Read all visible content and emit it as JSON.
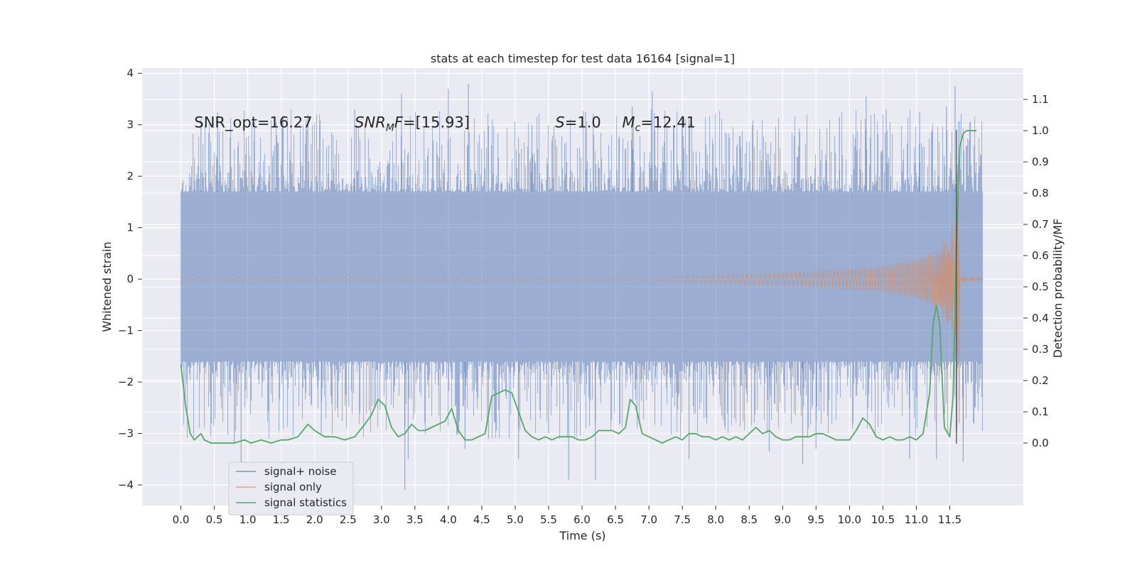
{
  "chart_data": {
    "type": "line",
    "title": "stats at each timestep for test data 16164 [signal=1]",
    "xlabel": "Time (s)",
    "ylabel": "Whitened strain",
    "ylabel_right": "Detection probability/MF",
    "xlim": [
      -0.58,
      12.6
    ],
    "ylim": [
      -4.4,
      4.1
    ],
    "ylim_right": [
      -0.2,
      1.2
    ],
    "grid": true,
    "legend_position": "lower-left",
    "colors": {
      "background": "#eaeaf2",
      "grid": "#ffffff",
      "noise": "#4c72b0",
      "signal": "#dd8452",
      "stats": "#55a868",
      "vline": "#444444"
    },
    "x_ticks": [
      "0.0",
      "0.5",
      "1.0",
      "1.5",
      "2.0",
      "2.5",
      "3.0",
      "3.5",
      "4.0",
      "4.5",
      "5.0",
      "5.5",
      "6.0",
      "6.5",
      "7.0",
      "7.5",
      "8.0",
      "8.5",
      "9.0",
      "9.5",
      "10.0",
      "10.5",
      "11.0",
      "11.5"
    ],
    "y_ticks_left": [
      "4",
      "3",
      "2",
      "1",
      "0",
      "−1",
      "−2",
      "−3",
      "−4"
    ],
    "y_ticks_right": [
      "1.1",
      "1.0",
      "0.9",
      "0.8",
      "0.7",
      "0.6",
      "0.5",
      "0.4",
      "0.3",
      "0.2",
      "0.1",
      "0.0"
    ],
    "annotations": [
      {
        "text": "SNR_opt=16.27",
        "x": 0.2,
        "y": 2.95
      },
      {
        "text": "SNR_MF=[15.93]",
        "x": 2.6,
        "y": 2.95
      },
      {
        "text": "S=1.0",
        "x": 5.6,
        "y": 2.95
      },
      {
        "text": "M_c=12.41",
        "x": 6.6,
        "y": 2.95
      }
    ],
    "series": [
      {
        "name": "signal+ noise",
        "axis": "left",
        "x_range": [
          0.0,
          12.0
        ],
        "envelope_typical": 1.7,
        "envelope_low_typical": -1.6,
        "spikes": [
          [
            0.3,
            3.1
          ],
          [
            0.55,
            3.25
          ],
          [
            1.1,
            3.05
          ],
          [
            1.9,
            3.2
          ],
          [
            2.6,
            3.3
          ],
          [
            3.3,
            3.6
          ],
          [
            4.0,
            3.7
          ],
          [
            4.3,
            3.8
          ],
          [
            5.25,
            3.0
          ],
          [
            6.05,
            3.25
          ],
          [
            6.75,
            3.35
          ],
          [
            7.05,
            3.65
          ],
          [
            7.6,
            3.1
          ],
          [
            8.55,
            3.0
          ],
          [
            9.85,
            3.15
          ],
          [
            10.25,
            3.55
          ],
          [
            10.55,
            3.3
          ],
          [
            11.05,
            3.25
          ],
          [
            11.45,
            3.35
          ],
          [
            11.58,
            3.75
          ],
          [
            0.8,
            -3.2
          ],
          [
            0.9,
            -3.6
          ],
          [
            2.1,
            -3.0
          ],
          [
            3.35,
            -4.1
          ],
          [
            3.4,
            -3.5
          ],
          [
            4.25,
            -3.3
          ],
          [
            4.6,
            -3.1
          ],
          [
            5.05,
            -3.5
          ],
          [
            5.5,
            -3.0
          ],
          [
            5.8,
            -3.9
          ],
          [
            6.2,
            -3.9
          ],
          [
            7.6,
            -3.5
          ],
          [
            8.8,
            -3.35
          ],
          [
            9.3,
            -3.6
          ],
          [
            9.5,
            -3.3
          ],
          [
            10.9,
            -3.5
          ],
          [
            11.3,
            -3.5
          ],
          [
            11.7,
            -3.55
          ]
        ]
      },
      {
        "name": "signal only",
        "axis": "left",
        "x_range": [
          0.0,
          12.0
        ],
        "amplitude": [
          [
            0.0,
            0.02
          ],
          [
            7.0,
            0.02
          ],
          [
            8.0,
            0.08
          ],
          [
            9.0,
            0.12
          ],
          [
            10.0,
            0.2
          ],
          [
            10.5,
            0.25
          ],
          [
            11.0,
            0.38
          ],
          [
            11.3,
            0.55
          ],
          [
            11.5,
            0.9
          ],
          [
            11.58,
            1.35
          ],
          [
            11.62,
            1.5
          ],
          [
            11.66,
            0.05
          ],
          [
            12.0,
            0.02
          ]
        ],
        "merger_dip": -2.8
      },
      {
        "name": "signal statistics",
        "axis": "right",
        "x": [
          0.0,
          0.07,
          0.14,
          0.2,
          0.25,
          0.3,
          0.35,
          0.45,
          0.6,
          0.8,
          0.95,
          1.05,
          1.2,
          1.35,
          1.5,
          1.6,
          1.75,
          1.9,
          2.0,
          2.15,
          2.3,
          2.45,
          2.6,
          2.75,
          2.85,
          2.95,
          3.05,
          3.15,
          3.25,
          3.35,
          3.45,
          3.55,
          3.65,
          3.75,
          3.85,
          3.95,
          4.05,
          4.15,
          4.25,
          4.35,
          4.45,
          4.55,
          4.65,
          4.75,
          4.85,
          4.95,
          5.05,
          5.15,
          5.25,
          5.35,
          5.45,
          5.55,
          5.65,
          5.75,
          5.85,
          5.95,
          6.05,
          6.15,
          6.25,
          6.35,
          6.45,
          6.55,
          6.65,
          6.72,
          6.8,
          6.9,
          7.0,
          7.1,
          7.2,
          7.3,
          7.4,
          7.5,
          7.6,
          7.7,
          7.8,
          7.9,
          8.0,
          8.1,
          8.2,
          8.3,
          8.4,
          8.5,
          8.6,
          8.7,
          8.8,
          8.9,
          9.0,
          9.1,
          9.2,
          9.3,
          9.4,
          9.5,
          9.6,
          9.7,
          9.8,
          9.9,
          10.0,
          10.1,
          10.2,
          10.3,
          10.4,
          10.5,
          10.6,
          10.7,
          10.8,
          10.9,
          11.0,
          11.1,
          11.2,
          11.25,
          11.3,
          11.35,
          11.42,
          11.5,
          11.55,
          11.6,
          11.65,
          11.7,
          11.75,
          11.8,
          11.9
        ],
        "y": [
          0.25,
          0.12,
          0.03,
          0.01,
          0.02,
          0.03,
          0.01,
          0.0,
          0.0,
          0.0,
          0.01,
          0.0,
          0.01,
          0.0,
          0.01,
          0.01,
          0.02,
          0.06,
          0.04,
          0.02,
          0.02,
          0.01,
          0.02,
          0.06,
          0.09,
          0.14,
          0.12,
          0.05,
          0.02,
          0.03,
          0.06,
          0.04,
          0.04,
          0.05,
          0.06,
          0.07,
          0.11,
          0.04,
          0.01,
          0.01,
          0.02,
          0.03,
          0.15,
          0.16,
          0.17,
          0.16,
          0.1,
          0.04,
          0.02,
          0.01,
          0.02,
          0.01,
          0.02,
          0.02,
          0.02,
          0.01,
          0.01,
          0.02,
          0.04,
          0.04,
          0.04,
          0.03,
          0.05,
          0.14,
          0.12,
          0.03,
          0.02,
          0.01,
          0.0,
          0.01,
          0.02,
          0.01,
          0.03,
          0.03,
          0.02,
          0.02,
          0.01,
          0.02,
          0.01,
          0.02,
          0.01,
          0.03,
          0.05,
          0.03,
          0.04,
          0.02,
          0.01,
          0.01,
          0.02,
          0.02,
          0.02,
          0.03,
          0.03,
          0.02,
          0.01,
          0.01,
          0.01,
          0.04,
          0.08,
          0.06,
          0.02,
          0.01,
          0.02,
          0.01,
          0.01,
          0.02,
          0.01,
          0.03,
          0.16,
          0.38,
          0.44,
          0.38,
          0.05,
          0.02,
          0.15,
          0.62,
          0.95,
          0.99,
          1.0,
          1.0,
          1.0
        ]
      }
    ],
    "vline_x": 11.6,
    "legend": [
      {
        "label": "signal+ noise",
        "color_key": "noise"
      },
      {
        "label": "signal only",
        "color_key": "signal"
      },
      {
        "label": "signal statistics",
        "color_key": "stats"
      }
    ]
  }
}
